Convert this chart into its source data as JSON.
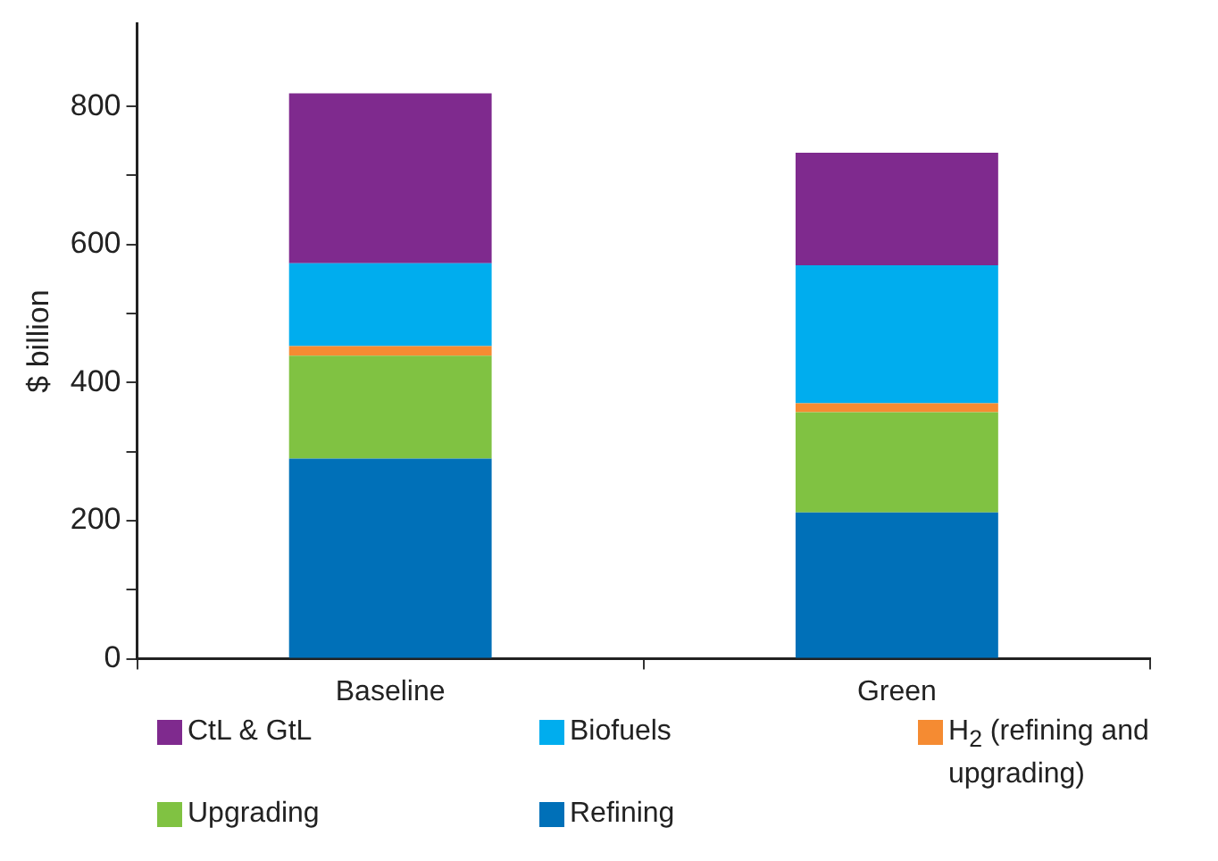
{
  "chart_data": {
    "type": "bar",
    "ylabel": "$ billion",
    "categories": [
      "Baseline",
      "Green"
    ],
    "stacked": true,
    "legend": "bottom",
    "grid": false,
    "ylim": [
      0,
      920
    ],
    "yticks": [
      0,
      {
        "value": 100,
        "label": null
      },
      200,
      {
        "value": 300,
        "label": null
      },
      400,
      {
        "value": 500,
        "label": null
      },
      600,
      {
        "value": 700,
        "label": null
      },
      800
    ],
    "series": [
      {
        "name": "Refining",
        "color": "#0070b8",
        "values": [
          290,
          212
        ]
      },
      {
        "name": "Upgrading",
        "color": "#80c242",
        "values": [
          149,
          145
        ]
      },
      {
        "name": "H$_{2}$ (refining and upgrading)",
        "color": "#f58b32",
        "values": [
          14,
          13
        ]
      },
      {
        "name": "Biofuels",
        "color": "#00adee",
        "values": [
          120,
          200
        ]
      },
      {
        "name": "CtL & GtL",
        "color": "#7f2a8e",
        "values": [
          246,
          163
        ]
      }
    ]
  }
}
